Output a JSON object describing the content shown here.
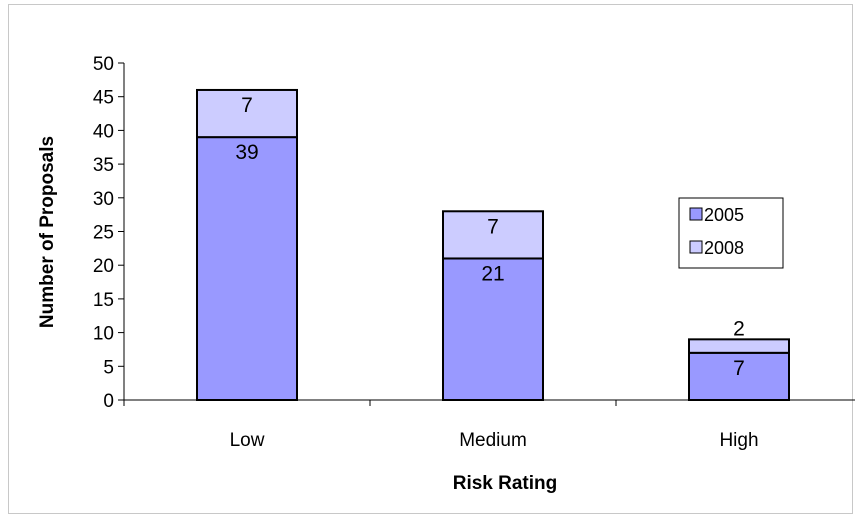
{
  "chart_data": {
    "type": "bar",
    "stacked": true,
    "categories": [
      "Low",
      "Medium",
      "High"
    ],
    "series": [
      {
        "name": "2005",
        "values": [
          39,
          21,
          7
        ],
        "color": "#9999ff"
      },
      {
        "name": "2008",
        "values": [
          7,
          7,
          2
        ],
        "color": "#ccccff"
      }
    ],
    "xlabel": "Risk Rating",
    "ylabel": "Number of Proposals",
    "ylim": [
      0,
      50
    ],
    "yticks": [
      0,
      5,
      10,
      15,
      20,
      25,
      30,
      35,
      40,
      45,
      50
    ],
    "grid": false,
    "legend": "right"
  }
}
